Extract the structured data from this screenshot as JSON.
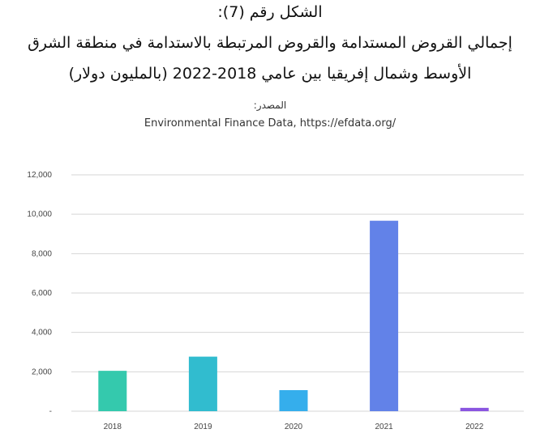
{
  "title": {
    "line1": "الشكل رقم (7):",
    "line2": "إجمالي القروض المستدامة والقروض المرتبطة بالاستدامة في منطقة الشرق",
    "line3": "الأوسط وشمال إفريقيا بين عامي 2018-2022 (بالمليون دولار)"
  },
  "source": {
    "label": "المصدر:",
    "text": "Environmental Finance Data, https://efdata.org/"
  },
  "chart_data": {
    "type": "bar",
    "title": "إجمالي القروض المستدامة والقروض المرتبطة بالاستدامة في منطقة الشرق الأوسط وشمال إفريقيا بين عامي 2018-2022 (بالمليون دولار)",
    "categories": [
      "2018",
      "2019",
      "2020",
      "2021",
      "2022"
    ],
    "values": [
      2050,
      2770,
      1070,
      9670,
      170
    ],
    "colors": [
      "#34c9ad",
      "#31bccf",
      "#35aeec",
      "#6282e8",
      "#8a55e0"
    ],
    "ylim": [
      0,
      12000
    ],
    "yticks": [
      0,
      2000,
      4000,
      6000,
      8000,
      10000,
      12000
    ],
    "ytick_labels": [
      "-",
      "2,000",
      "4,000",
      "6,000",
      "8,000",
      "10,000",
      "12,000"
    ],
    "xlabel": "",
    "ylabel": "",
    "grid": true
  }
}
